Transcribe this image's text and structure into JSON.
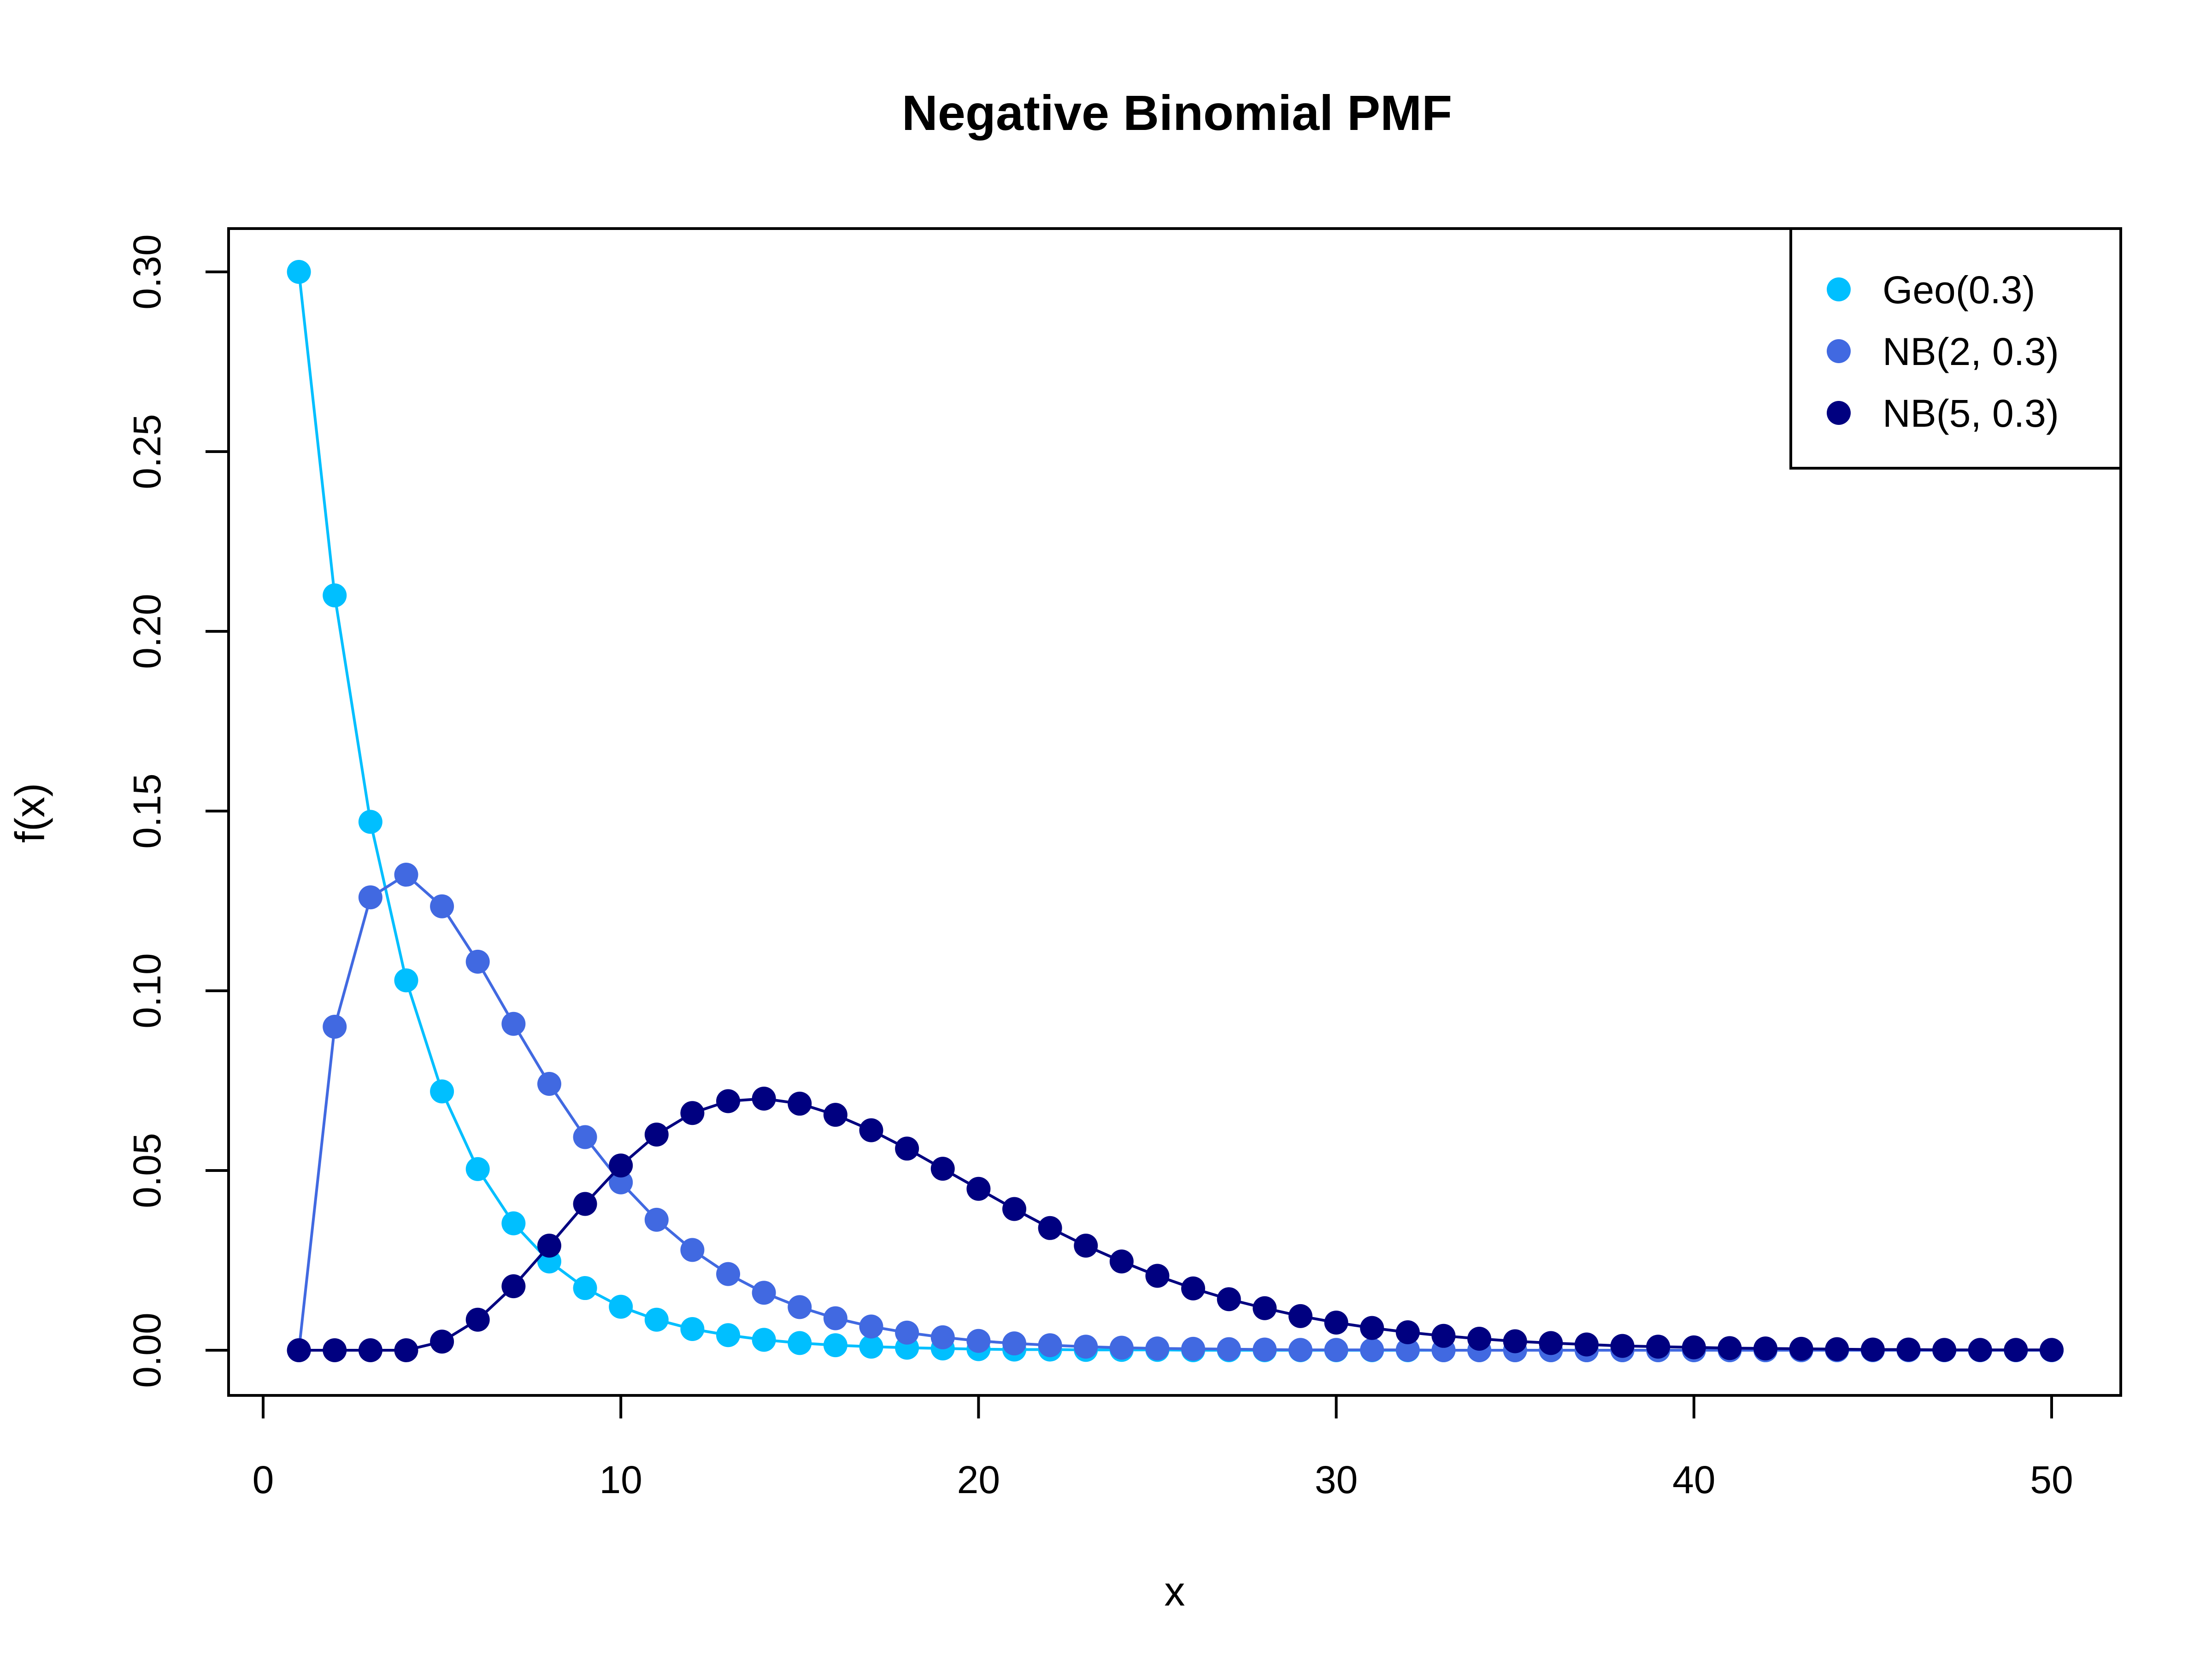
{
  "chart_data": {
    "type": "line",
    "title": "Negative Binomial PMF",
    "xlabel": "x",
    "ylabel": "f(x)",
    "xlim": [
      0,
      50
    ],
    "ylim": [
      0,
      0.3
    ],
    "x_ticks": [
      "0",
      "10",
      "20",
      "30",
      "40",
      "50"
    ],
    "y_ticks": [
      "0.00",
      "0.05",
      "0.10",
      "0.15",
      "0.20",
      "0.25",
      "0.30"
    ],
    "grid": false,
    "legend_position": "top-right",
    "x": [
      1,
      2,
      3,
      4,
      5,
      6,
      7,
      8,
      9,
      10,
      11,
      12,
      13,
      14,
      15,
      16,
      17,
      18,
      19,
      20,
      21,
      22,
      23,
      24,
      25,
      26,
      27,
      28,
      29,
      30,
      31,
      32,
      33,
      34,
      35,
      36,
      37,
      38,
      39,
      40,
      41,
      42,
      43,
      44,
      45,
      46,
      47,
      48,
      49,
      50
    ],
    "series": [
      {
        "name": "Geo(0.3)",
        "color": "#00BFFF",
        "values": [
          0.3,
          0.21,
          0.147,
          0.1029,
          0.072,
          0.0504,
          0.0353,
          0.0247,
          0.0173,
          0.0121,
          0.0085,
          0.0059,
          0.0042,
          0.0029,
          0.002,
          0.0014,
          0.001,
          0.0007,
          0.0005,
          0.0003,
          0.0002,
          0.0002,
          0.0001,
          0.0001,
          0.0001,
          0,
          0,
          0,
          0,
          0,
          0,
          0,
          0,
          0,
          0,
          0,
          0,
          0,
          0,
          0,
          0,
          0,
          0,
          0,
          0,
          0,
          0,
          0,
          0,
          0
        ]
      },
      {
        "name": "NB(2, 0.3)",
        "color": "#4169E1",
        "values": [
          0,
          0.09,
          0.126,
          0.1323,
          0.1235,
          0.1081,
          0.0908,
          0.0741,
          0.0593,
          0.0467,
          0.0363,
          0.0279,
          0.0212,
          0.016,
          0.012,
          0.0089,
          0.0066,
          0.0049,
          0.0036,
          0.0026,
          0.0019,
          0.0014,
          0.001,
          0.0007,
          0.0005,
          0.0004,
          0.0003,
          0.0002,
          0.0001,
          0.0001,
          0.0001,
          0.0001,
          0,
          0,
          0,
          0,
          0,
          0,
          0,
          0,
          0,
          0,
          0,
          0,
          0,
          0,
          0,
          0,
          0,
          0
        ]
      },
      {
        "name": "NB(5, 0.3)",
        "color": "#000080",
        "values": [
          0,
          0,
          0,
          0,
          0.0024,
          0.0085,
          0.0178,
          0.0291,
          0.0407,
          0.0514,
          0.06,
          0.066,
          0.0693,
          0.07,
          0.0686,
          0.0655,
          0.0612,
          0.0561,
          0.0505,
          0.0449,
          0.0393,
          0.034,
          0.0291,
          0.0247,
          0.0207,
          0.0172,
          0.0142,
          0.0117,
          0.0095,
          0.0077,
          0.0062,
          0.005,
          0.004,
          0.0032,
          0.0025,
          0.002,
          0.0016,
          0.0012,
          0.001,
          0.0008,
          0.0006,
          0.0005,
          0.0004,
          0.0003,
          0.0002,
          0.0002,
          0.0001,
          0.0001,
          0.0001,
          0.0001
        ]
      }
    ]
  }
}
